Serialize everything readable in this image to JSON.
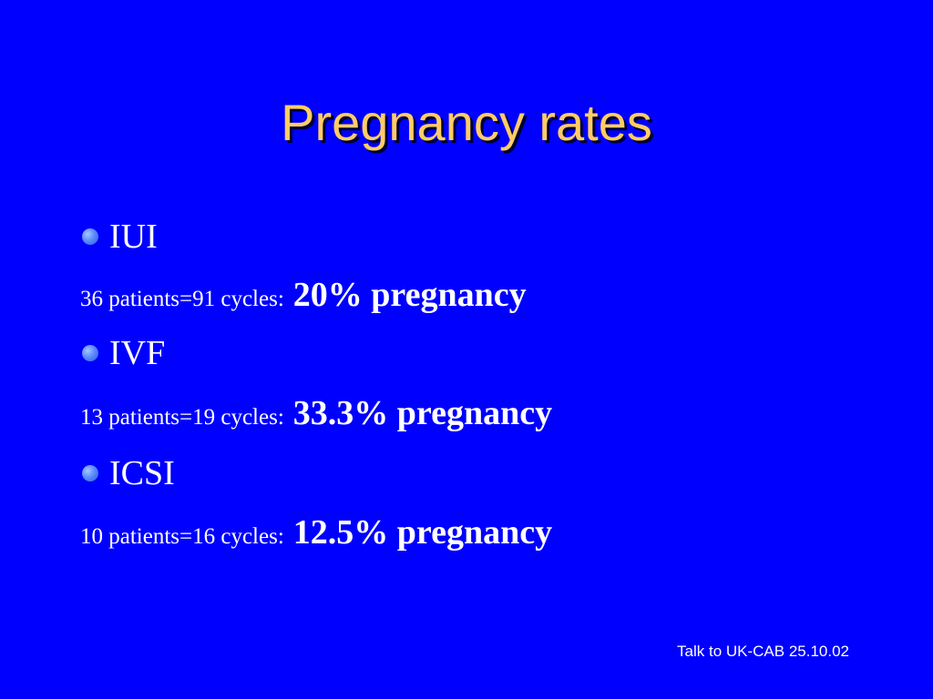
{
  "slide": {
    "title": "Pregnancy rates",
    "sections": [
      {
        "bullet": "IUI",
        "detail_label": "36 patients=91 cycles:",
        "detail_value": "20% pregnancy"
      },
      {
        "bullet": "IVF",
        "detail_label": "13 patients=19 cycles:",
        "detail_value": "33.3% pregnancy"
      },
      {
        "bullet": "ICSI",
        "detail_label": "10 patients=16 cycles:",
        "detail_value": "12.5% pregnancy"
      }
    ],
    "footer": "Talk to UK-CAB 25.10.02"
  },
  "colors": {
    "background": "#0000ff",
    "title": "#ffcc66",
    "text": "#ffffff",
    "bullet": "#5b8cff"
  }
}
